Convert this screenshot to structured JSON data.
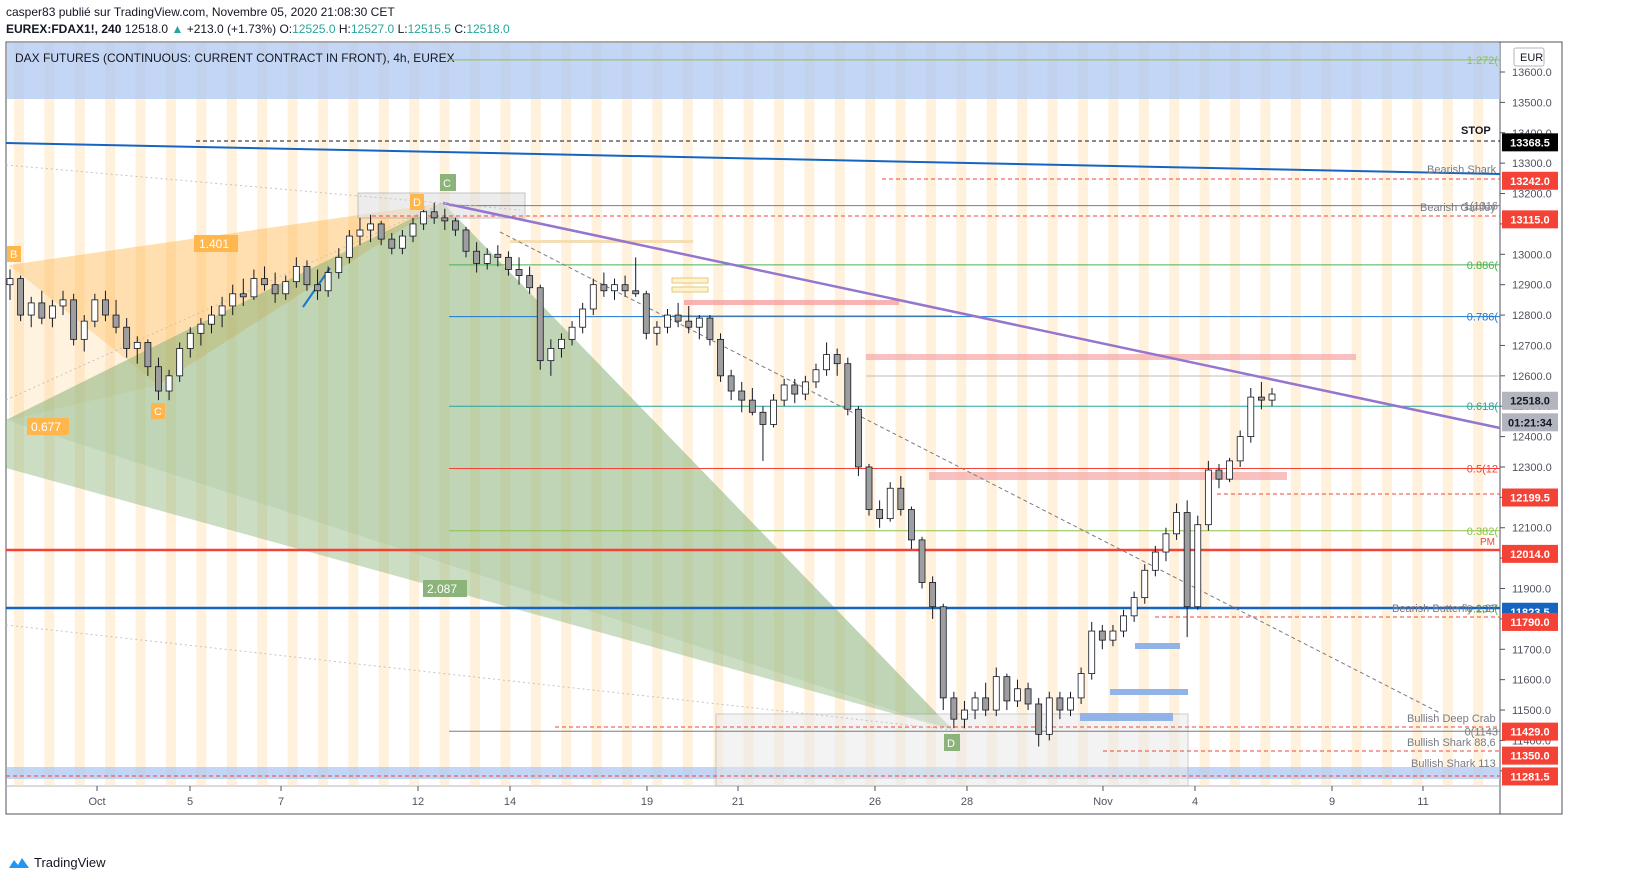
{
  "header": {
    "publisher_line": "casper83 publié sur TradingView.com, Novembre 05, 2020 21:08:30 CET",
    "symbol": "EUREX:FDAX1!, 240",
    "last": "12518.0",
    "change": "+213.0 (+1.73%)",
    "ohlc": {
      "o_label": "O:",
      "o": "12525.0",
      "h_label": "H:",
      "h": "12527.0",
      "l_label": "L:",
      "l": "12515.5",
      "c_label": "C:",
      "c": "12518.0"
    }
  },
  "chart_title": "DAX FUTURES (CONTINUOUS: CURRENT CONTRACT IN FRONT), 4h, EUREX",
  "currency": "EUR",
  "footer": {
    "brand": "TradingView"
  },
  "colors": {
    "up": "#26a69a",
    "fib": "#4caf50",
    "red": "#f44336",
    "blue": "#1565c0",
    "purple": "#9575cd",
    "orange": "#ffb74d",
    "green_pattern": "#8bb37a"
  },
  "chart_data": {
    "type": "candlestick",
    "y_ticks": [
      "13600.0",
      "13500.0",
      "13400.0",
      "13300.0",
      "13200.0",
      "13100.0",
      "13000.0",
      "12900.0",
      "12800.0",
      "12700.0",
      "12600.0",
      "12500.0",
      "12400.0",
      "12300.0",
      "12200.0",
      "12100.0",
      "12000.0",
      "11900.0",
      "11800.0",
      "11700.0",
      "11600.0",
      "11500.0",
      "11400.0",
      "11300.0"
    ],
    "x_ticks": [
      "Oct",
      "5",
      "7",
      "12",
      "14",
      "19",
      "21",
      "26",
      "28",
      "Nov",
      "4",
      "9",
      "11"
    ],
    "price_labels": [
      {
        "text": "13368.5",
        "value": 13368.5,
        "color": "#000000"
      },
      {
        "text": "13242.0",
        "value": 13242,
        "color": "#f44336"
      },
      {
        "text": "13115.0",
        "value": 13115,
        "color": "#f44336"
      },
      {
        "text": "12518.0",
        "value": 12518,
        "color": "#b2b5be"
      },
      {
        "text": "01:21:34",
        "value": 12447,
        "color": "#b2b5be"
      },
      {
        "text": "12199.5",
        "value": 12199.5,
        "color": "#f44336"
      },
      {
        "text": "12014.0",
        "value": 12014,
        "color": "#f44336"
      },
      {
        "text": "11823.5",
        "value": 11823.5,
        "color": "#1565c0"
      },
      {
        "text": "11790.0",
        "value": 11790,
        "color": "#f44336"
      },
      {
        "text": "11429.0",
        "value": 11429,
        "color": "#f44336"
      },
      {
        "text": "11350.0",
        "value": 11350,
        "color": "#f44336"
      },
      {
        "text": "11281.5",
        "value": 11281.5,
        "color": "#f44336"
      }
    ],
    "fib_levels": [
      {
        "label": "1.272(",
        "value": 13640,
        "color": "#8bc34a"
      },
      {
        "label": "1(1316",
        "value": 13160,
        "color": "#787b86"
      },
      {
        "label": "0.886(",
        "value": 12965,
        "color": "#4caf50"
      },
      {
        "label": "0.786(",
        "value": 12795,
        "color": "#1976d2"
      },
      {
        "label": "0.618(",
        "value": 12500,
        "color": "#26a69a"
      },
      {
        "label": "0.5(12",
        "value": 12295,
        "color": "#f44336"
      },
      {
        "label": "0.382(",
        "value": 12090,
        "color": "#8bc34a"
      },
      {
        "label": "0.236(",
        "value": 11835,
        "color": "#4caf50"
      },
      {
        "label": "0(1143",
        "value": 11430,
        "color": "#787b86"
      }
    ],
    "text_annotations": [
      "STOP",
      "Bearish Shark",
      "Bearish Gartley",
      "PM",
      "Bearish Butterfly 1,27",
      "Bullish Deep Crab",
      "Bullish Shark 88,6",
      "Bullish Shark 113"
    ],
    "pattern_labels": {
      "B": "B",
      "C1": "C",
      "D1": "D",
      "C2": "C",
      "D2": "D",
      "r1": "1.401",
      "r2": "0.677",
      "r3": "2.087"
    },
    "candles": [
      [
        12900,
        12950,
        12850,
        12920
      ],
      [
        12920,
        12930,
        12780,
        12800
      ],
      [
        12800,
        12860,
        12760,
        12840
      ],
      [
        12840,
        12880,
        12770,
        12790
      ],
      [
        12790,
        12850,
        12760,
        12830
      ],
      [
        12830,
        12880,
        12800,
        12850
      ],
      [
        12850,
        12870,
        12700,
        12720
      ],
      [
        12720,
        12800,
        12680,
        12780
      ],
      [
        12780,
        12870,
        12760,
        12850
      ],
      [
        12850,
        12880,
        12780,
        12800
      ],
      [
        12800,
        12850,
        12740,
        12760
      ],
      [
        12760,
        12790,
        12660,
        12690
      ],
      [
        12690,
        12730,
        12640,
        12710
      ],
      [
        12710,
        12720,
        12600,
        12630
      ],
      [
        12630,
        12660,
        12520,
        12550
      ],
      [
        12550,
        12620,
        12520,
        12600
      ],
      [
        12600,
        12710,
        12580,
        12690
      ],
      [
        12690,
        12760,
        12660,
        12740
      ],
      [
        12740,
        12790,
        12700,
        12770
      ],
      [
        12770,
        12830,
        12740,
        12800
      ],
      [
        12800,
        12860,
        12760,
        12830
      ],
      [
        12830,
        12900,
        12800,
        12870
      ],
      [
        12870,
        12920,
        12830,
        12860
      ],
      [
        12860,
        12950,
        12850,
        12920
      ],
      [
        12920,
        12960,
        12880,
        12900
      ],
      [
        12900,
        12940,
        12840,
        12870
      ],
      [
        12870,
        12930,
        12850,
        12910
      ],
      [
        12910,
        12990,
        12890,
        12960
      ],
      [
        12960,
        12980,
        12880,
        12900
      ],
      [
        12900,
        12950,
        12850,
        12880
      ],
      [
        12880,
        12960,
        12860,
        12940
      ],
      [
        12940,
        13020,
        12920,
        12990
      ],
      [
        12990,
        13080,
        12970,
        13060
      ],
      [
        13060,
        13120,
        13030,
        13080
      ],
      [
        13080,
        13130,
        13040,
        13100
      ],
      [
        13100,
        13110,
        13030,
        13050
      ],
      [
        13050,
        13070,
        13000,
        13020
      ],
      [
        13020,
        13080,
        13000,
        13060
      ],
      [
        13060,
        13120,
        13040,
        13100
      ],
      [
        13100,
        13160,
        13080,
        13140
      ],
      [
        13140,
        13170,
        13100,
        13120
      ],
      [
        13120,
        13150,
        13080,
        13110
      ],
      [
        13110,
        13120,
        13060,
        13080
      ],
      [
        13080,
        13090,
        12990,
        13010
      ],
      [
        13010,
        13040,
        12940,
        12970
      ],
      [
        12970,
        13020,
        12950,
        13000
      ],
      [
        13000,
        13030,
        12960,
        12990
      ],
      [
        12990,
        13010,
        12930,
        12950
      ],
      [
        12950,
        12990,
        12900,
        12930
      ],
      [
        12930,
        12960,
        12870,
        12890
      ],
      [
        12890,
        12900,
        12620,
        12650
      ],
      [
        12650,
        12720,
        12600,
        12690
      ],
      [
        12690,
        12740,
        12660,
        12720
      ],
      [
        12720,
        12780,
        12700,
        12760
      ],
      [
        12760,
        12840,
        12740,
        12820
      ],
      [
        12820,
        12920,
        12800,
        12900
      ],
      [
        12900,
        12940,
        12860,
        12880
      ],
      [
        12880,
        12920,
        12850,
        12900
      ],
      [
        12900,
        12930,
        12860,
        12880
      ],
      [
        12880,
        12990,
        12860,
        12870
      ],
      [
        12870,
        12880,
        12720,
        12740
      ],
      [
        12740,
        12780,
        12700,
        12760
      ],
      [
        12760,
        12820,
        12740,
        12800
      ],
      [
        12800,
        12840,
        12760,
        12780
      ],
      [
        12780,
        12830,
        12740,
        12760
      ],
      [
        12760,
        12800,
        12720,
        12790
      ],
      [
        12790,
        12800,
        12700,
        12720
      ],
      [
        12720,
        12740,
        12580,
        12600
      ],
      [
        12600,
        12620,
        12520,
        12550
      ],
      [
        12550,
        12580,
        12480,
        12520
      ],
      [
        12520,
        12560,
        12470,
        12480
      ],
      [
        12480,
        12500,
        12320,
        12440
      ],
      [
        12440,
        12540,
        12430,
        12520
      ],
      [
        12520,
        12590,
        12500,
        12570
      ],
      [
        12570,
        12590,
        12510,
        12540
      ],
      [
        12540,
        12600,
        12520,
        12580
      ],
      [
        12580,
        12640,
        12560,
        12620
      ],
      [
        12620,
        12710,
        12600,
        12670
      ],
      [
        12670,
        12690,
        12600,
        12640
      ],
      [
        12640,
        12660,
        12470,
        12490
      ],
      [
        12490,
        12500,
        12270,
        12300
      ],
      [
        12300,
        12310,
        12140,
        12160
      ],
      [
        12160,
        12190,
        12100,
        12130
      ],
      [
        12130,
        12250,
        12120,
        12230
      ],
      [
        12230,
        12270,
        12140,
        12160
      ],
      [
        12160,
        12170,
        12030,
        12060
      ],
      [
        12060,
        12070,
        11900,
        11920
      ],
      [
        11920,
        11940,
        11800,
        11840
      ],
      [
        11840,
        11850,
        11500,
        11540
      ],
      [
        11540,
        11560,
        11440,
        11470
      ],
      [
        11470,
        11530,
        11440,
        11500
      ],
      [
        11500,
        11560,
        11470,
        11540
      ],
      [
        11540,
        11590,
        11480,
        11500
      ],
      [
        11500,
        11640,
        11480,
        11610
      ],
      [
        11610,
        11620,
        11500,
        11530
      ],
      [
        11530,
        11600,
        11510,
        11570
      ],
      [
        11570,
        11590,
        11500,
        11520
      ],
      [
        11520,
        11540,
        11380,
        11420
      ],
      [
        11420,
        11560,
        11400,
        11540
      ],
      [
        11540,
        11560,
        11470,
        11500
      ],
      [
        11500,
        11560,
        11480,
        11540
      ],
      [
        11540,
        11640,
        11520,
        11620
      ],
      [
        11620,
        11790,
        11600,
        11760
      ],
      [
        11760,
        11780,
        11700,
        11730
      ],
      [
        11730,
        11780,
        11710,
        11760
      ],
      [
        11760,
        11830,
        11740,
        11810
      ],
      [
        11810,
        11890,
        11790,
        11870
      ],
      [
        11870,
        11980,
        11850,
        11960
      ],
      [
        11960,
        12040,
        11940,
        12020
      ],
      [
        12020,
        12100,
        11990,
        12080
      ],
      [
        12080,
        12180,
        12060,
        12150
      ],
      [
        12150,
        12190,
        11740,
        11840
      ],
      [
        11840,
        12140,
        11830,
        12110
      ],
      [
        12110,
        12320,
        12090,
        12290
      ],
      [
        12290,
        12310,
        12230,
        12260
      ],
      [
        12260,
        12330,
        12250,
        12320
      ],
      [
        12320,
        12420,
        12300,
        12400
      ],
      [
        12400,
        12560,
        12380,
        12530
      ],
      [
        12530,
        12580,
        12490,
        12520
      ],
      [
        12520,
        12560,
        12500,
        12540
      ]
    ]
  }
}
